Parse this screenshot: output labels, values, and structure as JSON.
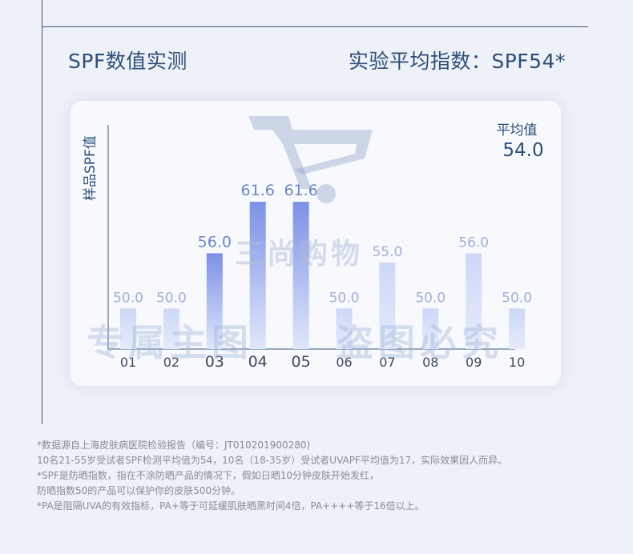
{
  "heading": {
    "left": "SPF数值实测",
    "right": "实验平均指数：SPF54*"
  },
  "watermark": {
    "center": "三尚购物",
    "left": "专属主图",
    "right": "盗图必究"
  },
  "chart_data": {
    "type": "bar",
    "ylabel": "样品SPF值",
    "categories": [
      "01",
      "02",
      "03",
      "04",
      "05",
      "06",
      "07",
      "08",
      "09",
      "10"
    ],
    "values": [
      50.0,
      50.0,
      56.0,
      61.6,
      61.6,
      50.0,
      55.0,
      50.0,
      56.0,
      50.0
    ],
    "value_labels": [
      "50.0",
      "50.0",
      "56.0",
      "61.6",
      "61.6",
      "50.0",
      "55.0",
      "50.0",
      "56.0",
      "50.0"
    ],
    "highlighted": [
      "03",
      "04",
      "05"
    ],
    "average_label": "平均值",
    "average_value": "54.0",
    "grid": false,
    "colors": {
      "bar_normal_top": "#cdd8f7",
      "bar_normal_bottom": "#e4ebfb",
      "bar_highlight_top": "#7d90e6",
      "bar_highlight_bottom": "#e0e7fb",
      "label_normal": "#9fb1d6",
      "label_highlight": "#6e86c8",
      "axis": "#3a5a80",
      "text": "#2d4f78"
    }
  },
  "notes": [
    "*数据源自上海皮肤病医院检验报告（编号：JT010201900280)",
    "10名21-55岁受试者SPF检测平均值为54，10名（18-35岁）受试者UVAPF平均值为17，实际效果因人而异。",
    "*SPF是防晒指数，指在不涂防晒产品的情况下，假如日晒10分钟皮肤开始发红，",
    "防晒指数50的产品可以保护你的皮肤500分钟。",
    "*PA是阻隔UVA的有效指标，PA+等于可延缓肌肤晒黑时间4倍，PA++++等于16倍以上。"
  ]
}
